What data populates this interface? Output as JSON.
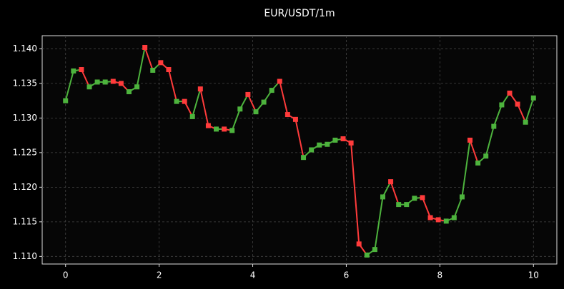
{
  "chart_data": {
    "type": "line",
    "title": "EUR/USDT/1m",
    "x": [
      0,
      0.1695,
      0.339,
      0.5085,
      0.678,
      0.8475,
      1.0169,
      1.1864,
      1.3559,
      1.5254,
      1.6949,
      1.8644,
      2.0339,
      2.2034,
      2.3729,
      2.5424,
      2.7119,
      2.8814,
      3.0508,
      3.2203,
      3.3898,
      3.5593,
      3.7288,
      3.8983,
      4.0678,
      4.2373,
      4.4068,
      4.5763,
      4.7458,
      4.9153,
      5.0847,
      5.2542,
      5.4237,
      5.5932,
      5.7627,
      5.9322,
      6.1017,
      6.2712,
      6.4407,
      6.6102,
      6.7797,
      6.9492,
      7.1186,
      7.2881,
      7.4576,
      7.6271,
      7.7966,
      7.9661,
      8.1356,
      8.3051,
      8.4746,
      8.6441,
      8.8136,
      8.9831,
      9.1525,
      9.322,
      9.4915,
      9.661,
      9.8305,
      10
    ],
    "values": [
      1.1325,
      1.1368,
      1.137,
      1.1345,
      1.1352,
      1.1352,
      1.1353,
      1.135,
      1.1338,
      1.1345,
      1.1402,
      1.1369,
      1.138,
      1.137,
      1.1324,
      1.1324,
      1.1302,
      1.1342,
      1.1289,
      1.1284,
      1.1284,
      1.1282,
      1.1313,
      1.1334,
      1.1309,
      1.1323,
      1.134,
      1.1353,
      1.1305,
      1.1298,
      1.1243,
      1.1254,
      1.1261,
      1.1262,
      1.1268,
      1.127,
      1.1264,
      1.1118,
      1.1102,
      1.111,
      1.1186,
      1.1208,
      1.1175,
      1.1175,
      1.1184,
      1.1185,
      1.1156,
      1.1153,
      1.1151,
      1.1156,
      1.1186,
      1.1268,
      1.1235,
      1.1245,
      1.1288,
      1.1319,
      1.1336,
      1.132,
      1.1294,
      1.1329
    ],
    "up_color": "#4db33d",
    "down_color": "#ff3b3b",
    "xlim": [
      -0.5,
      10.5
    ],
    "ylim": [
      1.1089,
      1.1419
    ],
    "xticks": [
      0,
      2,
      4,
      6,
      8,
      10
    ],
    "yticks": [
      {
        "value": 1.11,
        "label": "1.110"
      },
      {
        "value": 1.115,
        "label": "1.115"
      },
      {
        "value": 1.12,
        "label": "1.120"
      },
      {
        "value": 1.125,
        "label": "1.125"
      },
      {
        "value": 1.13,
        "label": "1.130"
      },
      {
        "value": 1.135,
        "label": "1.135"
      },
      {
        "value": 1.14,
        "label": "1.140"
      }
    ],
    "grid": true
  }
}
